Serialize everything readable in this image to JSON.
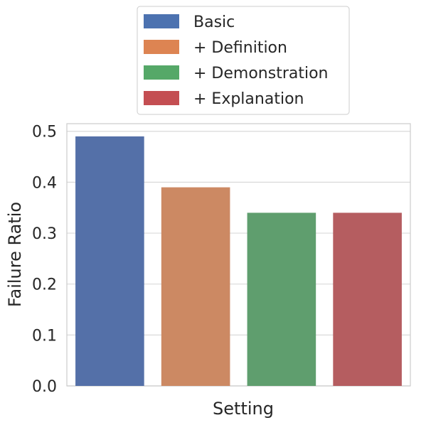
{
  "chart_data": {
    "type": "bar",
    "xlabel": "Setting",
    "ylabel": "Failure Ratio",
    "ylim": [
      0,
      0.515
    ],
    "yticks": [
      "0.0",
      "0.1",
      "0.2",
      "0.3",
      "0.4",
      "0.5"
    ],
    "grid": true,
    "legend_position": "top-center",
    "series": [
      {
        "name": "Basic",
        "value": 0.49,
        "color": "#5470a8"
      },
      {
        "name": "+ Definition",
        "value": 0.39,
        "color": "#cc8963"
      },
      {
        "name": "+ Demonstration",
        "value": 0.34,
        "color": "#5f9e6e"
      },
      {
        "name": "+ Explanation",
        "value": 0.34,
        "color": "#b55d60"
      }
    ],
    "legend_colors": [
      "#4c72b0",
      "#dd8452",
      "#55a868",
      "#c44e52"
    ]
  }
}
